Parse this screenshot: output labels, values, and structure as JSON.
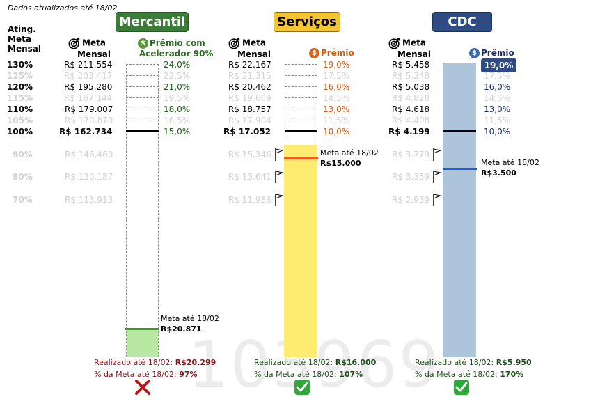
{
  "header": {
    "updated": "Dados atualizados até 18/02"
  },
  "watermark": "103969",
  "ating_header": [
    "Ating.",
    "Meta",
    "Mensal"
  ],
  "percent_levels": [
    "130%",
    "125%",
    "120%",
    "115%",
    "110%",
    "105%",
    "100%",
    "90%",
    "80%",
    "70%"
  ],
  "colors": {
    "merc": "#3a7d36",
    "serv": "#f5c431",
    "cdc": "#2f4b83",
    "fail": "#c0141b",
    "ok": "#2fa83a"
  },
  "panels": {
    "mercantil": {
      "title": "Mercantil",
      "meta_head": [
        "Meta",
        "Mensal"
      ],
      "premio_head": [
        "Prêmio com",
        "Acelerador 90%"
      ],
      "meta_values": [
        "R$ 211.554",
        "R$ 203.417",
        "R$ 195.280",
        "R$ 187.144",
        "R$ 179.007",
        "R$ 170.870",
        "R$ 162.734",
        "R$ 146.460",
        "R$ 130.187",
        "R$ 113.913"
      ],
      "premio_values": [
        "24,0%",
        "22,5%",
        "21,0%",
        "19,5%",
        "18,0%",
        "16,5%",
        "15,0%"
      ],
      "meta_ate": "Meta até 18/02",
      "meta_ate_value": "R$20.871",
      "realizado_label": "Realizado até 18/02: ",
      "realizado_value": "R$20.299",
      "pct_label": "% da Meta até 18/02: ",
      "pct_value": "97%",
      "status": "cross-icon",
      "progress_fraction": 0.097
    },
    "servicos": {
      "title": "Serviços",
      "meta_head": [
        "Meta",
        "Mensal"
      ],
      "premio_head": "Prêmio",
      "meta_values": [
        "R$ 22.167",
        "R$ 21.315",
        "R$ 20.462",
        "R$ 19.609",
        "R$ 18.757",
        "R$ 17.904",
        "R$ 17.052",
        "R$ 15.346",
        "R$ 13.641",
        "R$ 11.936"
      ],
      "premio_values": [
        "19,0%",
        "17,5%",
        "16,0%",
        "14,5%",
        "13,0%",
        "11,5%",
        "10,0%"
      ],
      "meta_ate": "Meta até 18/02",
      "meta_ate_value": "R$15.000",
      "realizado_label": "Realizado até 18/02: ",
      "realizado_value": "R$16.000",
      "pct_label": "% da Meta até 18/02: ",
      "pct_value": "107%",
      "status": "check-icon"
    },
    "cdc": {
      "title": "CDC",
      "meta_head": [
        "Meta",
        "Mensal"
      ],
      "premio_head": "Prêmio",
      "meta_values": [
        "R$ 5.458",
        "R$ 5.248",
        "R$ 5.038",
        "R$ 4.828",
        "R$ 4.618",
        "R$ 4.408",
        "R$ 4.199",
        "R$ 3.779",
        "R$ 3.359",
        "R$ 2.939"
      ],
      "premio_values": [
        "19,0%",
        "17,5%",
        "16,0%",
        "14,5%",
        "13,0%",
        "11,5%",
        "10,0%"
      ],
      "meta_ate": "Meta até 18/02",
      "meta_ate_value": "R$3.500",
      "realizado_label": "Realizado até 18/02: ",
      "realizado_value": "R$5.950",
      "pct_label": "% da Meta até 18/02: ",
      "pct_value": "170%",
      "status": "check-icon"
    }
  }
}
